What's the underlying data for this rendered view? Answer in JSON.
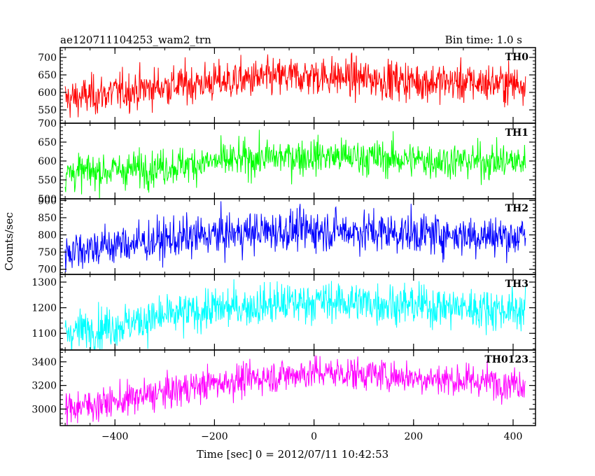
{
  "header": {
    "title": "ae120711104253_wam2_trn",
    "bin_time": "Bin time: 1.0 s"
  },
  "chart_data": {
    "type": "line",
    "xlabel": "Time [sec] 0 = 2012/07/11 10:42:53",
    "ylabel": "Counts/sec",
    "xlim": [
      -510,
      445
    ],
    "xticks": [
      -400,
      -200,
      0,
      200,
      400
    ],
    "x_range": [
      -500,
      425
    ],
    "grid": false,
    "series": [
      {
        "name": "TH0",
        "color": "#ff0000",
        "ylim": [
          512,
          728
        ],
        "yticks": [
          550,
          600,
          650,
          700
        ],
        "level": [
          [
            -500,
            580
          ],
          [
            -400,
            600
          ],
          [
            -300,
            618
          ],
          [
            -200,
            630
          ],
          [
            -100,
            640
          ],
          [
            0,
            648
          ],
          [
            100,
            640
          ],
          [
            200,
            632
          ],
          [
            300,
            628
          ],
          [
            425,
            625
          ]
        ],
        "noise": 28
      },
      {
        "name": "TH1",
        "color": "#00ff00",
        "ylim": [
          500,
          700
        ],
        "yticks": [
          500,
          550,
          600,
          650,
          700
        ],
        "level": [
          [
            -500,
            568
          ],
          [
            -400,
            575
          ],
          [
            -300,
            585
          ],
          [
            -200,
            598
          ],
          [
            -100,
            608
          ],
          [
            0,
            613
          ],
          [
            100,
            610
          ],
          [
            200,
            603
          ],
          [
            300,
            600
          ],
          [
            425,
            598
          ]
        ],
        "noise": 24
      },
      {
        "name": "TH2",
        "color": "#0000ff",
        "ylim": [
          685,
          905
        ],
        "yticks": [
          700,
          750,
          800,
          850,
          900
        ],
        "level": [
          [
            -500,
            755
          ],
          [
            -400,
            770
          ],
          [
            -300,
            785
          ],
          [
            -200,
            800
          ],
          [
            -100,
            810
          ],
          [
            0,
            815
          ],
          [
            100,
            810
          ],
          [
            200,
            805
          ],
          [
            300,
            800
          ],
          [
            425,
            795
          ]
        ],
        "noise": 30
      },
      {
        "name": "TH3",
        "color": "#00ffff",
        "ylim": [
          1035,
          1330
        ],
        "yticks": [
          1100,
          1200,
          1300
        ],
        "level": [
          [
            -500,
            1105
          ],
          [
            -400,
            1130
          ],
          [
            -300,
            1165
          ],
          [
            -200,
            1195
          ],
          [
            -100,
            1210
          ],
          [
            0,
            1225
          ],
          [
            100,
            1220
          ],
          [
            200,
            1210
          ],
          [
            300,
            1200
          ],
          [
            425,
            1190
          ]
        ],
        "noise": 40
      },
      {
        "name": "TH0123",
        "color": "#ff00ff",
        "ylim": [
          2860,
          3500
        ],
        "yticks": [
          3000,
          3200,
          3400
        ],
        "level": [
          [
            -500,
            3010
          ],
          [
            -400,
            3060
          ],
          [
            -300,
            3140
          ],
          [
            -200,
            3220
          ],
          [
            -100,
            3270
          ],
          [
            0,
            3310
          ],
          [
            100,
            3300
          ],
          [
            200,
            3270
          ],
          [
            300,
            3240
          ],
          [
            425,
            3220
          ]
        ],
        "noise": 70
      }
    ]
  }
}
